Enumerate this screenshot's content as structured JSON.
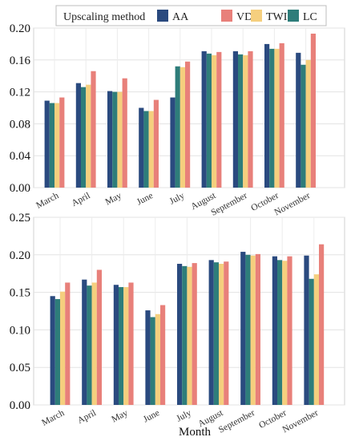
{
  "legend": {
    "title": "Upscaling method"
  },
  "xlabel": "Month",
  "chart_data": [
    {
      "type": "bar",
      "categories": [
        "March",
        "April",
        "May",
        "June",
        "July",
        "August",
        "September",
        "October",
        "November"
      ],
      "ylim": [
        0,
        0.2
      ],
      "yticks": [
        "0.00",
        "0.04",
        "0.08",
        "0.12",
        "0.16",
        "0.20"
      ],
      "series": [
        {
          "name": "AA",
          "color": "#2a4a7f",
          "values": [
            0.109,
            0.131,
            0.121,
            0.1,
            0.113,
            0.171,
            0.171,
            0.18,
            0.169
          ]
        },
        {
          "name": "VD",
          "color": "#e8807a",
          "values": [
            0.113,
            0.146,
            0.137,
            0.11,
            0.158,
            0.17,
            0.171,
            0.181,
            0.193
          ]
        },
        {
          "name": "TWI",
          "color": "#f5cf7e",
          "values": [
            0.106,
            0.129,
            0.12,
            0.096,
            0.151,
            0.166,
            0.166,
            0.174,
            0.16
          ]
        },
        {
          "name": "LC",
          "color": "#2e7d7a",
          "values": [
            0.106,
            0.126,
            0.12,
            0.096,
            0.152,
            0.168,
            0.167,
            0.174,
            0.154
          ]
        }
      ],
      "grid": true
    },
    {
      "type": "bar",
      "categories": [
        "March",
        "April",
        "May",
        "June",
        "July",
        "August",
        "September",
        "October",
        "November"
      ],
      "ylim": [
        0,
        0.25
      ],
      "yticks": [
        "0.00",
        "0.05",
        "0.10",
        "0.15",
        "0.20",
        "0.25"
      ],
      "series": [
        {
          "name": "AA",
          "color": "#2a4a7f",
          "values": [
            0.145,
            0.167,
            0.16,
            0.126,
            0.188,
            0.193,
            0.204,
            0.198,
            0.199
          ]
        },
        {
          "name": "VD",
          "color": "#e8807a",
          "values": [
            0.163,
            0.18,
            0.163,
            0.133,
            0.189,
            0.191,
            0.201,
            0.198,
            0.214
          ]
        },
        {
          "name": "TWI",
          "color": "#f5cf7e",
          "values": [
            0.151,
            0.163,
            0.157,
            0.121,
            0.184,
            0.188,
            0.199,
            0.192,
            0.174
          ]
        },
        {
          "name": "LC",
          "color": "#2e7d7a",
          "values": [
            0.141,
            0.159,
            0.157,
            0.117,
            0.185,
            0.19,
            0.2,
            0.193,
            0.168
          ]
        }
      ],
      "grid": true
    }
  ]
}
